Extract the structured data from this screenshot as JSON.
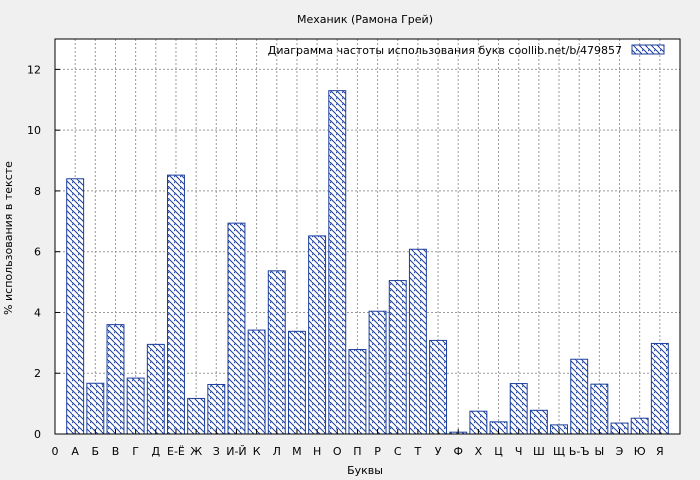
{
  "chart_data": {
    "type": "bar",
    "title": "Механик (Рамона Грей)",
    "xlabel": "Буквы",
    "ylabel": "% использования в тексте",
    "legend_label": "Диаграмма частоты использования букв  coollib.net/b/479857",
    "legend_position": "top-right",
    "grid": true,
    "ylim": [
      0,
      13
    ],
    "yticks": [
      "0",
      "2",
      "4",
      "6",
      "8",
      "10",
      "12"
    ],
    "categories": [
      "0",
      "А",
      "Б",
      "В",
      "Г",
      "Д",
      "Е-Ё",
      "Ж",
      "З",
      "И-Й",
      "К",
      "Л",
      "М",
      "Н",
      "О",
      "П",
      "Р",
      "С",
      "Т",
      "У",
      "Ф",
      "Х",
      "Ц",
      "Ч",
      "Ш",
      "Щ",
      "Ь-Ъ",
      "Ы",
      "Э",
      "Ю",
      "Я"
    ],
    "values": [
      null,
      8.4,
      1.67,
      3.6,
      1.84,
      2.95,
      8.52,
      1.17,
      1.63,
      6.94,
      3.42,
      5.37,
      3.38,
      6.52,
      11.3,
      2.78,
      4.04,
      5.05,
      6.08,
      3.08,
      0.06,
      0.75,
      0.4,
      1.66,
      0.78,
      0.3,
      2.46,
      1.64,
      0.36,
      0.52,
      2.98
    ],
    "colors": {
      "bar_stroke": "#1c3f9e",
      "hatch": "#1c3f9e",
      "background": "#f0f0f0",
      "plot_bg": "#ffffff",
      "grid": "#9a9a9a"
    }
  }
}
